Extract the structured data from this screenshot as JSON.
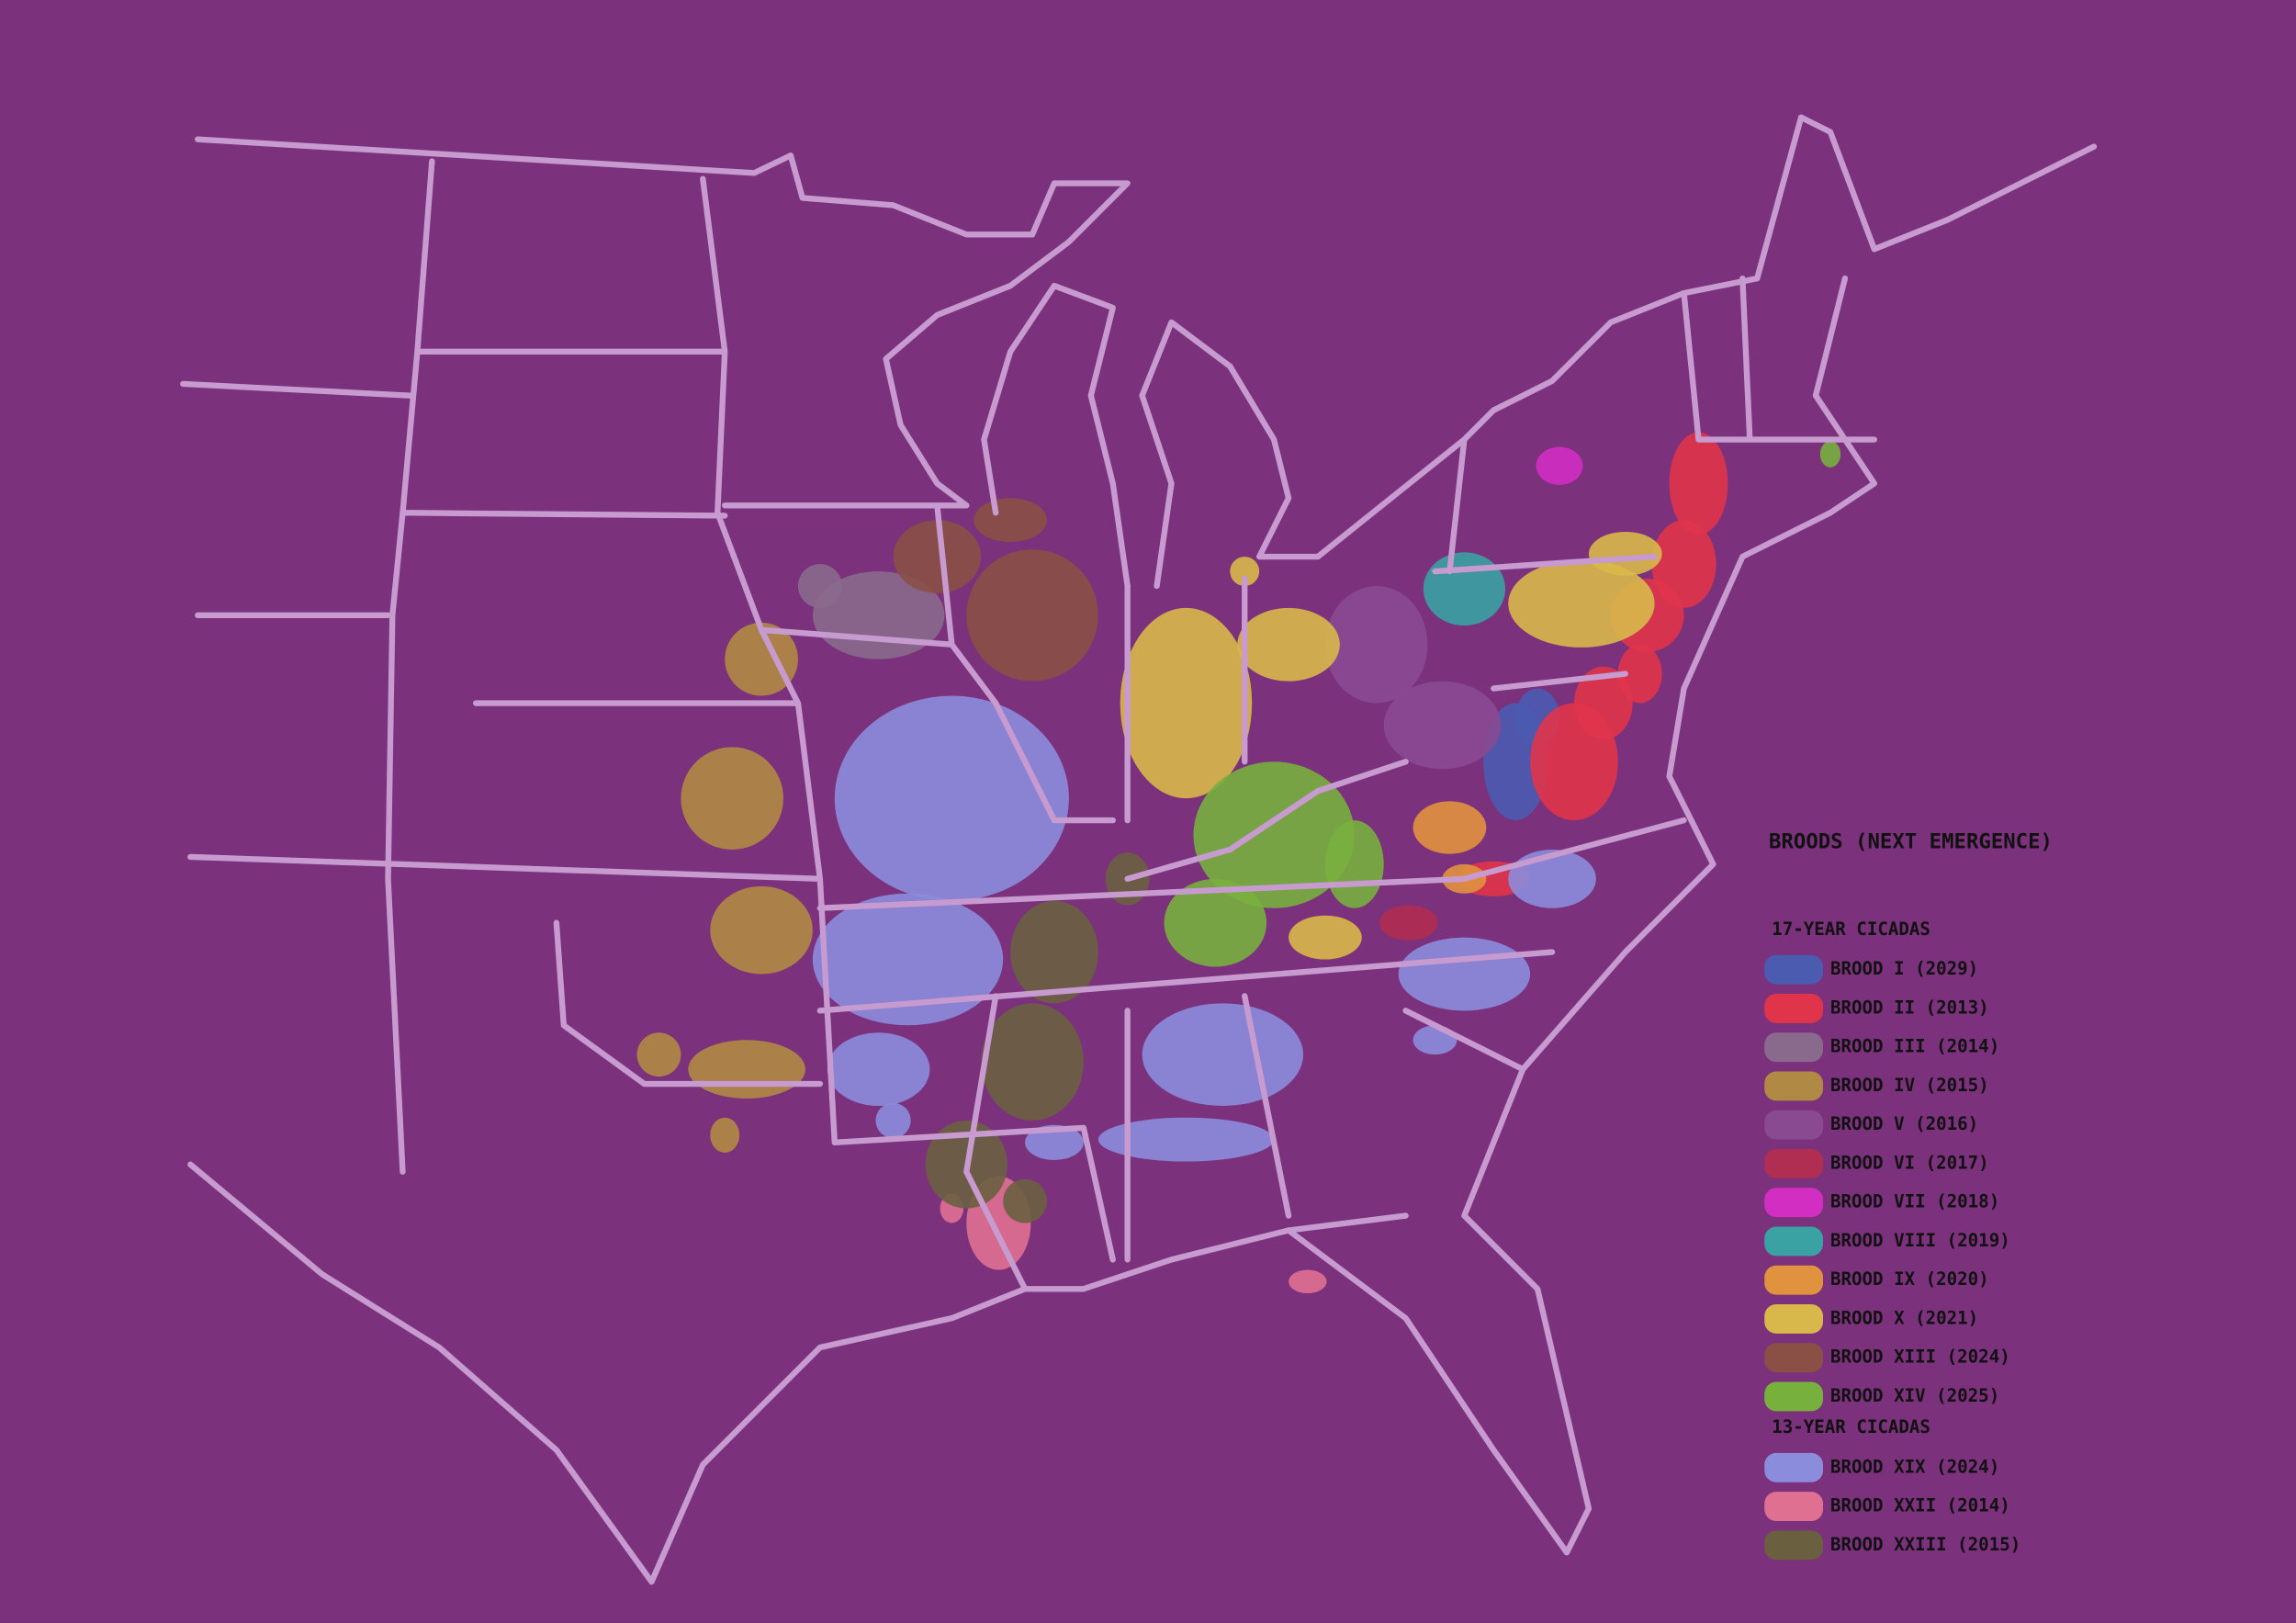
{
  "legend": {
    "title": "BROODS (NEXT EMERGENCE)",
    "groups": [
      {
        "heading": "17-YEAR CICADAS",
        "items": [
          {
            "label": "BROOD I (2029)",
            "color": "#4a5bb0"
          },
          {
            "label": "BROOD II (2013)",
            "color": "#e0344a"
          },
          {
            "label": "BROOD III (2014)",
            "color": "#8a6a8c"
          },
          {
            "label": "BROOD IV (2015)",
            "color": "#b08a44"
          },
          {
            "label": "BROOD V (2016)",
            "color": "#8a4a92"
          },
          {
            "label": "BROOD VI (2017)",
            "color": "#b02e52"
          },
          {
            "label": "BROOD VII (2018)",
            "color": "#d22ec2"
          },
          {
            "label": "BROOD VIII (2019)",
            "color": "#3aa2a2"
          },
          {
            "label": "BROOD IX (2020)",
            "color": "#e0923e"
          },
          {
            "label": "BROOD X (2021)",
            "color": "#d8b84a"
          },
          {
            "label": "BROOD XIII (2024)",
            "color": "#8a5046"
          },
          {
            "label": "BROOD XIV (2025)",
            "color": "#78b03e"
          }
        ]
      },
      {
        "heading": "13-YEAR CICADAS",
        "items": [
          {
            "label": "BROOD XIX (2024)",
            "color": "#8c8cdc"
          },
          {
            "label": "BROOD XXII (2014)",
            "color": "#e07092"
          },
          {
            "label": "BROOD XXIII (2015)",
            "color": "#6a6040"
          }
        ]
      }
    ]
  }
}
